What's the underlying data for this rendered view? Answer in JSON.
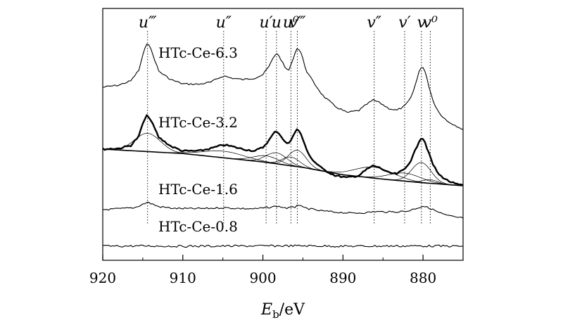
{
  "chart_data": {
    "type": "line",
    "xlabel_main": "E",
    "xlabel_sub": "b",
    "xlabel_unit": "/eV",
    "xlim": [
      920,
      875
    ],
    "x_ticks": [
      920,
      910,
      900,
      890,
      880
    ],
    "x_tick_labels": [
      "920",
      "910",
      "900",
      "890",
      "880"
    ],
    "peak_labels": [
      {
        "label": "u‴",
        "x": 914.4
      },
      {
        "label": "u″",
        "x": 904.9
      },
      {
        "label": "u′",
        "x": 899.6
      },
      {
        "label": "u",
        "x": 898.3
      },
      {
        "label": "u⁰",
        "x": 896.5
      },
      {
        "label": "v‴",
        "x": 895.7
      },
      {
        "label": "v″",
        "x": 886.1
      },
      {
        "label": "v′",
        "x": 882.3
      },
      {
        "label": "v",
        "x": 880.2
      },
      {
        "label": "v⁰",
        "x": 879.1
      }
    ],
    "series": [
      {
        "name": "HTc-Ce-6.3",
        "x": [
          920,
          918,
          916.5,
          915.5,
          915,
          914.4,
          913.8,
          913,
          911.5,
          910,
          908,
          906.5,
          905.5,
          904.9,
          904,
          902.5,
          901,
          900,
          899.2,
          898.7,
          898.3,
          897.8,
          897.2,
          896.7,
          896.2,
          895.7,
          895.2,
          894.6,
          893.8,
          892.5,
          891,
          889.5,
          888,
          887,
          886.2,
          885.3,
          884.3,
          883.3,
          882.3,
          881.5,
          880.8,
          880.4,
          880.1,
          879.8,
          879.3,
          878.7,
          878,
          877,
          876,
          875
        ],
        "y": [
          0.0,
          0.05,
          0.15,
          0.4,
          0.75,
          1.1,
          0.8,
          0.38,
          0.18,
          0.08,
          0.07,
          0.12,
          0.22,
          0.27,
          0.22,
          0.18,
          0.22,
          0.3,
          0.5,
          0.7,
          0.82,
          0.68,
          0.45,
          0.4,
          0.7,
          0.95,
          0.8,
          0.4,
          0.15,
          -0.2,
          -0.45,
          -0.6,
          -0.55,
          -0.4,
          -0.3,
          -0.38,
          -0.5,
          -0.55,
          -0.45,
          -0.25,
          0.15,
          0.45,
          0.5,
          0.4,
          0.05,
          -0.35,
          -0.6,
          -0.8,
          -0.9,
          -1.0
        ]
      },
      {
        "name": "HTc-Ce-3.2",
        "x": [
          920,
          918,
          916.5,
          915.5,
          915,
          914.4,
          913.8,
          913,
          911.5,
          910,
          908,
          906.5,
          905.5,
          904.9,
          904,
          902.5,
          901,
          900,
          899.2,
          898.7,
          898.3,
          897.8,
          897.2,
          896.7,
          896.2,
          895.7,
          895.2,
          894.6,
          893.8,
          892.5,
          891,
          889.5,
          888,
          887,
          886.2,
          885.3,
          884.3,
          883.3,
          882.3,
          881.5,
          880.8,
          880.4,
          880.1,
          879.8,
          879.3,
          878.7,
          878,
          877,
          876,
          875
        ],
        "y": [
          0.0,
          0.02,
          0.1,
          0.35,
          0.7,
          0.95,
          0.7,
          0.32,
          0.08,
          -0.05,
          -0.05,
          0.02,
          0.08,
          0.12,
          0.08,
          0.0,
          -0.05,
          0.05,
          0.25,
          0.42,
          0.5,
          0.38,
          0.18,
          0.15,
          0.4,
          0.55,
          0.4,
          0.0,
          -0.3,
          -0.55,
          -0.72,
          -0.78,
          -0.72,
          -0.55,
          -0.45,
          -0.52,
          -0.65,
          -0.68,
          -0.55,
          -0.3,
          0.05,
          0.28,
          0.32,
          0.22,
          -0.1,
          -0.45,
          -0.7,
          -0.85,
          -0.95,
          -1.0
        ]
      },
      {
        "name": "HTc-Ce-1.6",
        "x": [
          920,
          918,
          916,
          914.4,
          913,
          911,
          909,
          907,
          905,
          903,
          901,
          899,
          898.3,
          897,
          896,
          895.7,
          895,
          893,
          891,
          889,
          887,
          886,
          884,
          882,
          881,
          880,
          879,
          878,
          877,
          876,
          875
        ],
        "y": [
          0.0,
          0.04,
          0.1,
          0.38,
          0.15,
          0.06,
          0.05,
          0.06,
          0.1,
          0.06,
          0.04,
          0.12,
          0.18,
          0.08,
          0.12,
          0.28,
          0.1,
          -0.05,
          -0.12,
          -0.18,
          -0.15,
          -0.1,
          -0.12,
          -0.08,
          0.05,
          0.18,
          0.05,
          -0.15,
          -0.3,
          -0.38,
          -0.42
        ]
      },
      {
        "name": "HTc-Ce-0.8",
        "x": [
          920,
          915,
          910,
          905,
          900,
          895,
          890,
          885,
          880,
          875
        ],
        "y": [
          0.0,
          0.02,
          0.0,
          0.01,
          0.02,
          0.03,
          0.0,
          0.01,
          0.02,
          0.0
        ]
      }
    ],
    "fit_peaks": [
      {
        "center": 914.4,
        "height": 0.5,
        "width": 1.6
      },
      {
        "center": 904.9,
        "height": 0.18,
        "width": 2.6
      },
      {
        "center": 899.6,
        "height": 0.18,
        "width": 1.6
      },
      {
        "center": 898.3,
        "height": 0.3,
        "width": 1.3
      },
      {
        "center": 896.5,
        "height": 0.24,
        "width": 1.1
      },
      {
        "center": 895.7,
        "height": 0.45,
        "width": 1.1
      },
      {
        "center": 886.1,
        "height": 0.3,
        "width": 2.4
      },
      {
        "center": 882.3,
        "height": 0.22,
        "width": 2.0
      },
      {
        "center": 880.2,
        "height": 0.55,
        "width": 1.2
      },
      {
        "center": 879.1,
        "height": 0.1,
        "width": 0.9
      }
    ],
    "background": {
      "x": [
        920,
        910,
        900,
        895,
        890,
        885,
        880,
        875
      ],
      "y": [
        0.0,
        -0.12,
        -0.35,
        -0.5,
        -0.7,
        -0.82,
        -0.92,
        -1.0
      ]
    }
  }
}
